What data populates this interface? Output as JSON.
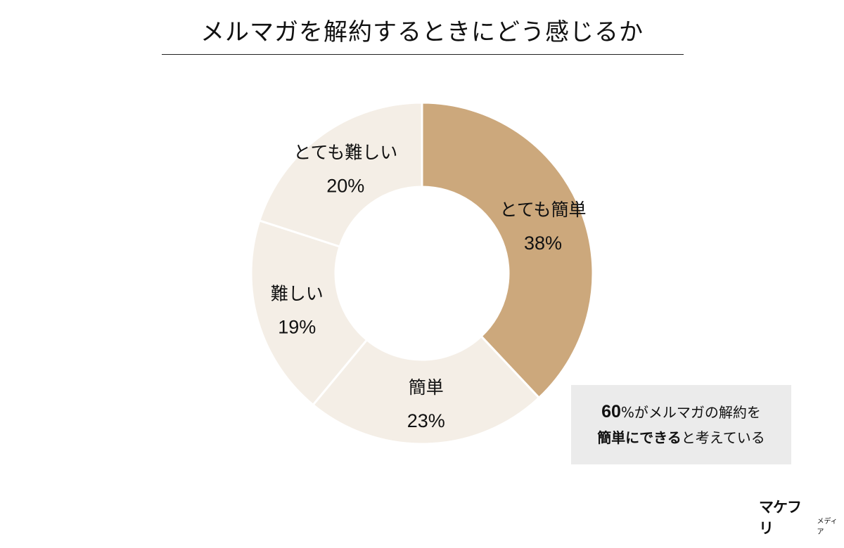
{
  "title": "メルマガを解約するときにどう感じるか",
  "chart_data": {
    "type": "pie",
    "donut": true,
    "start_angle_deg": 0,
    "direction": "clockwise",
    "slices": [
      {
        "label": "とても簡単",
        "value": 38,
        "value_text": "38%",
        "color": "#cca87c"
      },
      {
        "label": "簡単",
        "value": 23,
        "value_text": "23%",
        "color": "#f4eee6"
      },
      {
        "label": "難しい",
        "value": 19,
        "value_text": "19%",
        "color": "#f4eee6"
      },
      {
        "label": "とても難しい",
        "value": 20,
        "value_text": "20%",
        "color": "#f4eee6"
      }
    ],
    "separator_color": "#ffffff",
    "legend": "none"
  },
  "callout": {
    "line1_number": "60",
    "line1_rest": "%がメルマガの解約を",
    "line2_bold": "簡単にできる",
    "line2_rest": "と考えている"
  },
  "logo": {
    "main": "マケフリ",
    "sub": "メディア"
  }
}
